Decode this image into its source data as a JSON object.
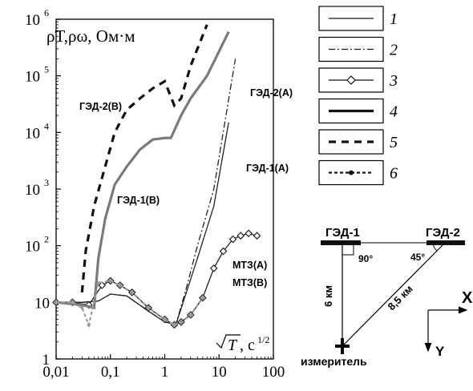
{
  "chart_data": {
    "type": "line",
    "ylabel": "ρT,ρω, Ом·м",
    "xlabel": "√T, с^1/2",
    "x_scale": "log",
    "y_scale": "log",
    "xlim": [
      0.01,
      100
    ],
    "ylim": [
      1,
      1000000
    ],
    "x_ticks": [
      "0,01",
      "0,1",
      "1",
      "10",
      "100"
    ],
    "y_ticks": [
      {
        "value": 1,
        "base": "1",
        "exp": ""
      },
      {
        "value": 10,
        "base": "10",
        "exp": ""
      },
      {
        "value": 100,
        "base": "10",
        "exp": "2"
      },
      {
        "value": 1000,
        "base": "10",
        "exp": "3"
      },
      {
        "value": 10000,
        "base": "10",
        "exp": "4"
      },
      {
        "value": 100000,
        "base": "10",
        "exp": "5"
      },
      {
        "value": 1000000,
        "base": "10",
        "exp": "6"
      }
    ],
    "grid": false,
    "series": [
      {
        "name": "ГЭД-1(А)",
        "style": "solid-thin",
        "color": "#222222",
        "points": [
          [
            0.01,
            10
          ],
          [
            0.03,
            10
          ],
          [
            0.06,
            10.5
          ],
          [
            0.1,
            14
          ],
          [
            0.2,
            13
          ],
          [
            0.5,
            7
          ],
          [
            1,
            4.5
          ],
          [
            1.6,
            4
          ],
          [
            2.5,
            15
          ],
          [
            4,
            60
          ],
          [
            8,
            500
          ],
          [
            15,
            15000
          ]
        ]
      },
      {
        "name": "ГЭД-2(А)",
        "style": "dashdot",
        "color": "#222222",
        "points": [
          [
            0.01,
            10
          ],
          [
            0.03,
            10
          ],
          [
            0.06,
            10.5
          ],
          [
            0.1,
            14
          ],
          [
            0.2,
            13
          ],
          [
            0.5,
            7
          ],
          [
            1,
            4.5
          ],
          [
            1.6,
            4
          ],
          [
            2.5,
            18
          ],
          [
            4,
            100
          ],
          [
            8,
            1000
          ],
          [
            20,
            200000
          ]
        ]
      },
      {
        "name": "МТЗ(А)",
        "style": "marker-diamond",
        "color": "#222222",
        "points": [
          [
            0.01,
            10
          ],
          [
            0.02,
            10
          ],
          [
            0.04,
            9
          ],
          [
            0.07,
            20
          ],
          [
            0.1,
            24
          ],
          [
            0.15,
            20
          ],
          [
            0.25,
            15
          ],
          [
            0.5,
            8
          ],
          [
            1,
            5
          ],
          [
            1.5,
            4
          ],
          [
            2,
            4.5
          ],
          [
            3,
            6
          ],
          [
            5,
            12
          ],
          [
            8,
            40
          ],
          [
            12,
            80
          ],
          [
            18,
            130
          ],
          [
            25,
            150
          ],
          [
            35,
            165
          ],
          [
            50,
            150
          ]
        ]
      },
      {
        "name": "ГЭД-1(В)",
        "style": "solid-thick",
        "color": "#7a7a7a",
        "points": [
          [
            0.01,
            10
          ],
          [
            0.03,
            9
          ],
          [
            0.05,
            8
          ],
          [
            0.06,
            60
          ],
          [
            0.08,
            300
          ],
          [
            0.12,
            1200
          ],
          [
            0.2,
            2500
          ],
          [
            0.35,
            5000
          ],
          [
            0.6,
            7500
          ],
          [
            1,
            8000
          ],
          [
            1.3,
            8000
          ],
          [
            2,
            20000
          ],
          [
            3,
            40000
          ],
          [
            6,
            100000
          ],
          [
            15,
            600000
          ]
        ]
      },
      {
        "name": "ГЭД-2(В)",
        "style": "dashed-thick",
        "color": "#111111",
        "points": [
          [
            0.03,
            15
          ],
          [
            0.035,
            80
          ],
          [
            0.05,
            500
          ],
          [
            0.08,
            2500
          ],
          [
            0.12,
            10000
          ],
          [
            0.2,
            25000
          ],
          [
            0.35,
            40000
          ],
          [
            0.6,
            60000
          ],
          [
            1,
            80000
          ],
          [
            1.5,
            30000
          ],
          [
            2,
            40000
          ],
          [
            3,
            150000
          ],
          [
            6,
            800000
          ]
        ]
      },
      {
        "name": "МТЗ(В)",
        "style": "dot-marker",
        "color": "#9a9a9a",
        "points": [
          [
            0.01,
            10
          ],
          [
            0.02,
            10
          ],
          [
            0.03,
            8
          ],
          [
            0.04,
            4
          ],
          [
            0.06,
            22
          ],
          [
            0.1,
            24
          ],
          [
            0.15,
            20
          ],
          [
            0.25,
            15
          ],
          [
            0.5,
            8
          ],
          [
            1,
            5
          ],
          [
            1.5,
            4
          ],
          [
            2,
            4.5
          ],
          [
            3,
            6
          ],
          [
            5,
            12
          ]
        ]
      }
    ],
    "annotations": [
      "ГЭД-2(В)",
      "ГЭД-1(В)",
      "ГЭД-2(А)",
      "ГЭД-1(А)",
      "МТЗ(А)",
      "МТЗ(В)"
    ]
  },
  "legend": [
    {
      "number": "1",
      "style": "solid-thin"
    },
    {
      "number": "2",
      "style": "dashdot"
    },
    {
      "number": "3",
      "style": "marker-diamond"
    },
    {
      "number": "4",
      "style": "solid-thick"
    },
    {
      "number": "5",
      "style": "dashed-thick"
    },
    {
      "number": "6",
      "style": "dot-marker"
    }
  ],
  "scheme": {
    "source1": "ГЭД-1",
    "source2": "ГЭД-2",
    "angle1": "90°",
    "angle2": "45°",
    "dist_vertical": "6 км",
    "dist_diagonal": "8,5 км",
    "receiver": "измеритель",
    "axis_x": "X",
    "axis_y": "Y"
  }
}
